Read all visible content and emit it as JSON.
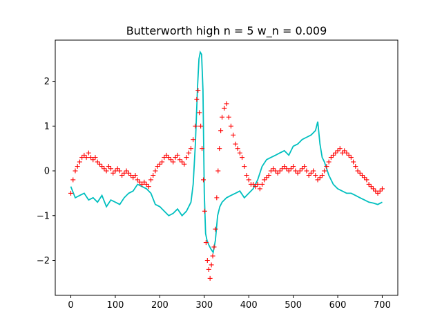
{
  "chart_data": {
    "type": "line",
    "title": "Butterworth high n = 5  w_n = 0.009",
    "xlabel": "",
    "ylabel": "",
    "xlim": [
      -35,
      735
    ],
    "ylim": [
      -2.78,
      2.92
    ],
    "x_ticks": [
      0,
      100,
      200,
      300,
      400,
      500,
      600,
      700
    ],
    "y_ticks": [
      -2,
      -1,
      0,
      1,
      2
    ],
    "grid": false,
    "legend": "none",
    "series": [
      {
        "style": "line",
        "color": "#00bfbf",
        "x": [
          0,
          10,
          20,
          30,
          40,
          50,
          60,
          70,
          80,
          90,
          100,
          110,
          120,
          130,
          140,
          150,
          160,
          170,
          180,
          190,
          200,
          210,
          220,
          230,
          240,
          250,
          260,
          270,
          275,
          280,
          285,
          288,
          291,
          294,
          297,
          300,
          303,
          306,
          310,
          315,
          320,
          325,
          330,
          335,
          340,
          350,
          360,
          370,
          380,
          390,
          400,
          410,
          420,
          430,
          440,
          450,
          460,
          470,
          480,
          490,
          500,
          510,
          520,
          530,
          540,
          550,
          555,
          560,
          565,
          570,
          580,
          590,
          600,
          610,
          620,
          630,
          640,
          650,
          660,
          670,
          680,
          690,
          700
        ],
        "y": [
          -0.35,
          -0.6,
          -0.55,
          -0.5,
          -0.65,
          -0.6,
          -0.7,
          -0.55,
          -0.8,
          -0.65,
          -0.7,
          -0.75,
          -0.6,
          -0.5,
          -0.45,
          -0.3,
          -0.35,
          -0.4,
          -0.5,
          -0.75,
          -0.8,
          -0.9,
          -1.0,
          -0.95,
          -0.85,
          -1.0,
          -0.9,
          -0.7,
          -0.3,
          0.6,
          1.9,
          2.5,
          2.65,
          2.6,
          1.8,
          -0.5,
          -1.4,
          -1.55,
          -1.65,
          -1.75,
          -1.82,
          -1.55,
          -1.0,
          -0.8,
          -0.7,
          -0.6,
          -0.55,
          -0.5,
          -0.45,
          -0.6,
          -0.5,
          -0.4,
          -0.2,
          0.1,
          0.25,
          0.3,
          0.35,
          0.4,
          0.45,
          0.35,
          0.55,
          0.6,
          0.7,
          0.75,
          0.8,
          0.9,
          1.1,
          0.6,
          0.3,
          0.2,
          -0.1,
          -0.3,
          -0.4,
          -0.45,
          -0.5,
          -0.5,
          -0.55,
          -0.6,
          -0.65,
          -0.7,
          -0.72,
          -0.75,
          -0.7
        ]
      },
      {
        "style": "markers",
        "marker": "+",
        "color": "#ff0000",
        "x": [
          0,
          5,
          10,
          15,
          20,
          25,
          30,
          35,
          40,
          45,
          50,
          55,
          60,
          65,
          70,
          75,
          80,
          85,
          90,
          95,
          100,
          105,
          110,
          115,
          120,
          125,
          130,
          135,
          140,
          145,
          150,
          155,
          160,
          165,
          170,
          175,
          180,
          185,
          190,
          195,
          200,
          205,
          210,
          215,
          220,
          225,
          230,
          235,
          240,
          245,
          250,
          255,
          260,
          265,
          270,
          275,
          280,
          283,
          286,
          289,
          292,
          295,
          298,
          301,
          304,
          307,
          310,
          313,
          316,
          319,
          322,
          325,
          328,
          331,
          334,
          337,
          340,
          345,
          350,
          355,
          360,
          365,
          370,
          375,
          380,
          385,
          390,
          395,
          400,
          405,
          410,
          415,
          420,
          425,
          430,
          435,
          440,
          445,
          450,
          455,
          460,
          465,
          470,
          475,
          480,
          485,
          490,
          495,
          500,
          505,
          510,
          515,
          520,
          525,
          530,
          535,
          540,
          545,
          550,
          555,
          560,
          565,
          570,
          575,
          580,
          585,
          590,
          595,
          600,
          605,
          610,
          615,
          620,
          625,
          630,
          635,
          640,
          645,
          650,
          655,
          660,
          665,
          670,
          675,
          680,
          685,
          690,
          695,
          700
        ],
        "y": [
          -0.5,
          -0.2,
          0.0,
          0.1,
          0.2,
          0.3,
          0.35,
          0.3,
          0.4,
          0.3,
          0.25,
          0.3,
          0.2,
          0.15,
          0.1,
          0.05,
          0.0,
          0.1,
          0.05,
          -0.05,
          0.0,
          0.05,
          0.0,
          -0.1,
          -0.05,
          0.0,
          -0.05,
          -0.1,
          -0.15,
          -0.1,
          -0.2,
          -0.25,
          -0.3,
          -0.25,
          -0.3,
          -0.35,
          -0.2,
          -0.1,
          0.0,
          0.1,
          0.15,
          0.2,
          0.3,
          0.35,
          0.3,
          0.25,
          0.2,
          0.3,
          0.35,
          0.25,
          0.2,
          0.15,
          0.3,
          0.4,
          0.5,
          0.7,
          1.0,
          1.6,
          1.8,
          1.3,
          1.0,
          0.5,
          -0.2,
          -0.9,
          -1.6,
          -2.0,
          -2.2,
          -2.4,
          -2.1,
          -1.9,
          -1.7,
          -1.3,
          -0.6,
          0.0,
          0.5,
          0.9,
          1.2,
          1.4,
          1.5,
          1.2,
          1.0,
          0.8,
          0.6,
          0.5,
          0.4,
          0.3,
          0.1,
          -0.1,
          -0.2,
          -0.3,
          -0.3,
          -0.35,
          -0.3,
          -0.4,
          -0.3,
          -0.2,
          -0.15,
          -0.1,
          0.0,
          0.05,
          0.0,
          -0.05,
          0.0,
          0.05,
          0.1,
          0.05,
          0.0,
          0.05,
          0.1,
          0.0,
          -0.05,
          0.0,
          0.05,
          0.1,
          0.0,
          -0.1,
          -0.05,
          0.0,
          -0.1,
          -0.2,
          -0.15,
          -0.1,
          0.0,
          0.1,
          0.2,
          0.3,
          0.35,
          0.4,
          0.45,
          0.5,
          0.4,
          0.45,
          0.4,
          0.35,
          0.3,
          0.2,
          0.1,
          0.0,
          -0.05,
          -0.1,
          -0.15,
          -0.2,
          -0.3,
          -0.35,
          -0.4,
          -0.45,
          -0.5,
          -0.45,
          -0.4
        ]
      }
    ]
  }
}
